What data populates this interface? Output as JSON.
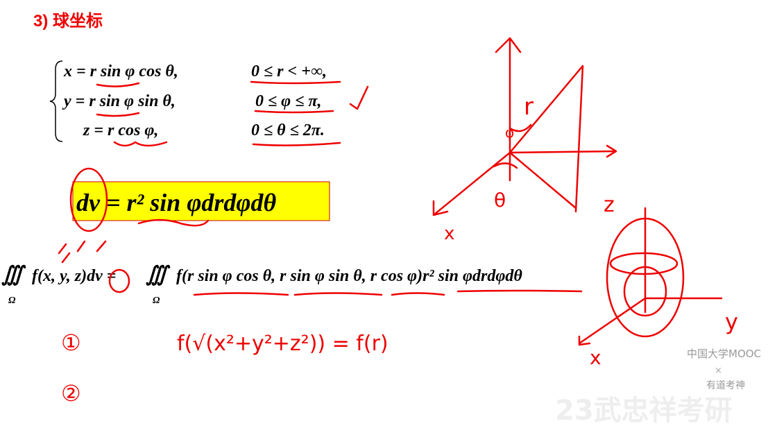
{
  "header": {
    "title": "3) 球坐标"
  },
  "system": {
    "rows": [
      [
        "x = r sin φ cos θ,",
        "0 ≤ r < +∞,"
      ],
      [
        "y = r sin φ sin θ,",
        "0 ≤ φ ≤ π,"
      ],
      [
        "z = r cos φ,",
        "0 ≤ θ ≤ 2π."
      ]
    ]
  },
  "volume_element": "dv = r² sin φdrdφdθ",
  "integral": {
    "symbol": "∭",
    "domain": "Ω",
    "lhs": "f(x, y, z)dv =",
    "rhs": "f(r sin φ cos θ, r sin φ sin θ, r cos φ)r² sin φdrdφdθ"
  },
  "annotations": {
    "r": "r",
    "phi": "φ",
    "theta": "θ",
    "x1": "x",
    "z": "z",
    "y": "y",
    "x2": "x",
    "step1": "①",
    "step2": "②",
    "formula": "f(√(x²+y²+z²)) = f(r)"
  },
  "watermark": {
    "platform": "中国大学MOOC",
    "cross": "×",
    "partner": "有道考神",
    "channel": "23武忠祥考研"
  }
}
